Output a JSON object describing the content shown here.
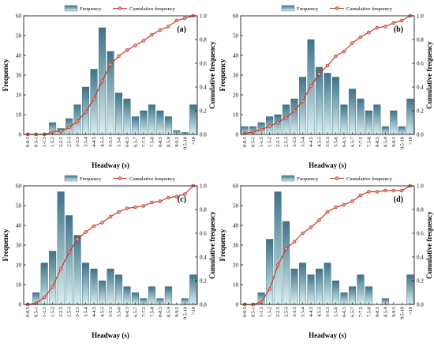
{
  "chart_data": [
    {
      "type": "bar",
      "panel_label": "(a)",
      "xlabel": "Headway (s)",
      "ylabel": "Frequency",
      "y2label": "Cumulative frequency",
      "ylim": [
        0,
        60
      ],
      "y2lim": [
        0,
        1.0
      ],
      "yticks": [
        "0",
        "10",
        "20",
        "30",
        "40",
        "50",
        "60"
      ],
      "y2ticks": [
        "0.0",
        "0.2",
        "0.4",
        "0.6",
        "0.8",
        "1.0"
      ],
      "legend": {
        "bar": "Frequency",
        "line": "Cumulative frequency",
        "placement": "top"
      },
      "categories": [
        "0-0.5",
        "0.5-1",
        "1-1.5",
        "1.5-2",
        "2-2.5",
        "2.5-3",
        "3-3.5",
        "3.5-4",
        "4-4.5",
        "4.5-5",
        "5-5.5",
        "5.5-6",
        "6-6.5",
        "6.5-7",
        "7-7.5",
        "7.5-8",
        "8-8.5",
        "8.5-9",
        "9-9.5",
        "9.5-10",
        ">10"
      ],
      "series": [
        {
          "name": "Frequency",
          "kind": "bar",
          "values": [
            0,
            0,
            0,
            6,
            3,
            8,
            15,
            24,
            33,
            54,
            42,
            21,
            18,
            9,
            12,
            15,
            12,
            9,
            2,
            1,
            15
          ]
        },
        {
          "name": "Cumulative frequency",
          "kind": "line",
          "values": [
            0.0,
            0.0,
            0.0,
            0.02,
            0.03,
            0.06,
            0.11,
            0.19,
            0.3,
            0.45,
            0.59,
            0.66,
            0.71,
            0.75,
            0.79,
            0.84,
            0.88,
            0.91,
            0.96,
            0.98,
            1.0
          ]
        }
      ]
    },
    {
      "type": "bar",
      "panel_label": "(b)",
      "xlabel": "Headway (s)",
      "ylabel": "Frequency",
      "y2label": "Cumulative frequency",
      "ylim": [
        0,
        60
      ],
      "y2lim": [
        0,
        1.0
      ],
      "yticks": [
        "0",
        "10",
        "20",
        "30",
        "40",
        "50",
        "60"
      ],
      "y2ticks": [
        "0.0",
        "0.2",
        "0.4",
        "0.6",
        "0.8",
        "1.0"
      ],
      "legend": {
        "bar": "Frequency",
        "line": "Cumulative frequency",
        "placement": "top"
      },
      "categories": [
        "0-0.5",
        "0.5-1",
        "1-1.5",
        "1.5-2",
        "2-2.5",
        "2.5-3",
        "3-3.5",
        "3.5-4",
        "4-4.5",
        "4.5-5",
        "5-5.5",
        "5.5-6",
        "6-6.5",
        "6.5-7",
        "7-7.5",
        "7.5-8",
        "8-8.5",
        "8.5-9",
        "9-9.5",
        "9.5-10",
        ">10"
      ],
      "series": [
        {
          "name": "Frequency",
          "kind": "bar",
          "values": [
            4,
            4,
            6,
            9,
            10,
            15,
            18,
            29,
            48,
            34,
            31,
            29,
            15,
            23,
            18,
            12,
            15,
            4,
            12,
            4,
            18
          ]
        },
        {
          "name": "Cumulative frequency",
          "kind": "line",
          "values": [
            0.01,
            0.02,
            0.04,
            0.07,
            0.1,
            0.14,
            0.2,
            0.28,
            0.41,
            0.51,
            0.58,
            0.66,
            0.7,
            0.77,
            0.82,
            0.86,
            0.9,
            0.91,
            0.94,
            0.96,
            1.0
          ]
        }
      ]
    },
    {
      "type": "bar",
      "panel_label": "(c)",
      "xlabel": "Headway (s)",
      "ylabel": "Frequency",
      "y2label": "Cumulative frequency",
      "ylim": [
        0,
        60
      ],
      "y2lim": [
        0,
        1.0
      ],
      "yticks": [
        "0",
        "10",
        "20",
        "30",
        "40",
        "50",
        "60"
      ],
      "y2ticks": [
        "0.0",
        "0.2",
        "0.4",
        "0.6",
        "0.8",
        "1.0"
      ],
      "legend": {
        "bar": "Frequency",
        "line": "Cumulative frequency",
        "placement": "top"
      },
      "categories": [
        "0-0.5",
        "0.5-1",
        "1-1.5",
        "1.5-2",
        "2-2.5",
        "2.5-3",
        "3-3.5",
        "3.5-4",
        "4-4.5",
        "4.5-5",
        "5-5.5",
        "5.5-6",
        "6-6.5",
        "6.5-7",
        "7-7.5",
        "7.5-8",
        "8-8.5",
        "8.5-9",
        "9-9.5",
        "9.5-10",
        ">10"
      ],
      "series": [
        {
          "name": "Frequency",
          "kind": "bar",
          "values": [
            0,
            6,
            21,
            27,
            57,
            45,
            35,
            21,
            18,
            12,
            18,
            15,
            9,
            6,
            3,
            9,
            3,
            9,
            0,
            3,
            15
          ]
        },
        {
          "name": "Cumulative frequency",
          "kind": "line",
          "values": [
            0.0,
            0.01,
            0.06,
            0.15,
            0.3,
            0.44,
            0.55,
            0.61,
            0.66,
            0.69,
            0.74,
            0.78,
            0.81,
            0.82,
            0.83,
            0.86,
            0.87,
            0.9,
            0.91,
            0.93,
            1.0
          ]
        }
      ]
    },
    {
      "type": "bar",
      "panel_label": "(d)",
      "xlabel": "Headway (s)",
      "ylabel": "Frequency",
      "y2label": "Cumulative frequency",
      "ylim": [
        0,
        60
      ],
      "y2lim": [
        0,
        1.0
      ],
      "yticks": [
        "0",
        "10",
        "20",
        "30",
        "40",
        "50",
        "60"
      ],
      "y2ticks": [
        "0.0",
        "0.2",
        "0.4",
        "0.6",
        "0.8",
        "1.0"
      ],
      "legend": {
        "bar": "Frequency",
        "line": "Cumulative frequency",
        "placement": "top"
      },
      "categories": [
        "0-0.5",
        "0.5-1",
        "1-1.5",
        "1.5-2",
        "2-2.5",
        "2.5-3",
        "3-3.5",
        "3.5-4",
        "4-4.5",
        "4.5-5",
        "5-5.5",
        "5.5-6",
        "6-6.5",
        "6.5-7",
        "7-7.5",
        "7.5-8",
        "8-8.5",
        "8.5-9",
        "9-9.5",
        "9.5-10",
        ">10"
      ],
      "series": [
        {
          "name": "Frequency",
          "kind": "bar",
          "values": [
            0,
            0,
            6,
            33,
            57,
            42,
            18,
            21,
            15,
            18,
            21,
            12,
            6,
            9,
            15,
            9,
            0,
            3,
            0,
            0,
            15
          ]
        },
        {
          "name": "Cumulative frequency",
          "kind": "line",
          "values": [
            0.0,
            0.0,
            0.02,
            0.13,
            0.33,
            0.47,
            0.53,
            0.6,
            0.65,
            0.71,
            0.78,
            0.82,
            0.84,
            0.87,
            0.92,
            0.95,
            0.95,
            0.96,
            0.96,
            0.96,
            1.0
          ]
        }
      ]
    }
  ]
}
